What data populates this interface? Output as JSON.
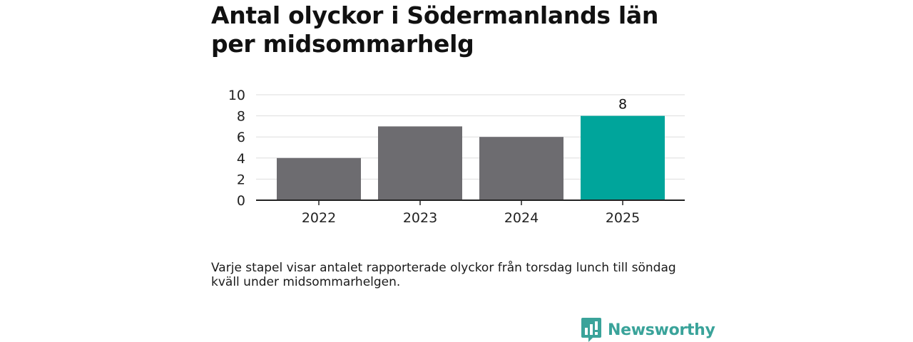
{
  "title": "Antal olyckor i Södermanlands län per midsommarhelg",
  "caption": "Varje stapel visar antalet rapporterade olyckor från torsdag lunch till söndag kväll under midsommarhelgen.",
  "brand": {
    "name": "Newsworthy",
    "logo_icon": "newsworthy-bar-chart-logo-icon",
    "color": "#3aa39a"
  },
  "chart_data": {
    "type": "bar",
    "categories": [
      "2022",
      "2023",
      "2024",
      "2025"
    ],
    "values": [
      4,
      7,
      6,
      8
    ],
    "ylim": [
      0,
      10
    ],
    "yticks": [
      0,
      2,
      4,
      6,
      8,
      10
    ],
    "xlabel": "",
    "ylabel": "",
    "grid": true,
    "legend": "none",
    "colors": {
      "default_bar": "#6d6c70",
      "highlight_bar": "#00a59b",
      "grid": "#dddddd",
      "axis": "#222222"
    },
    "highlight_index": 3,
    "data_labels": [
      {
        "index": 3,
        "text": "8"
      }
    ]
  }
}
